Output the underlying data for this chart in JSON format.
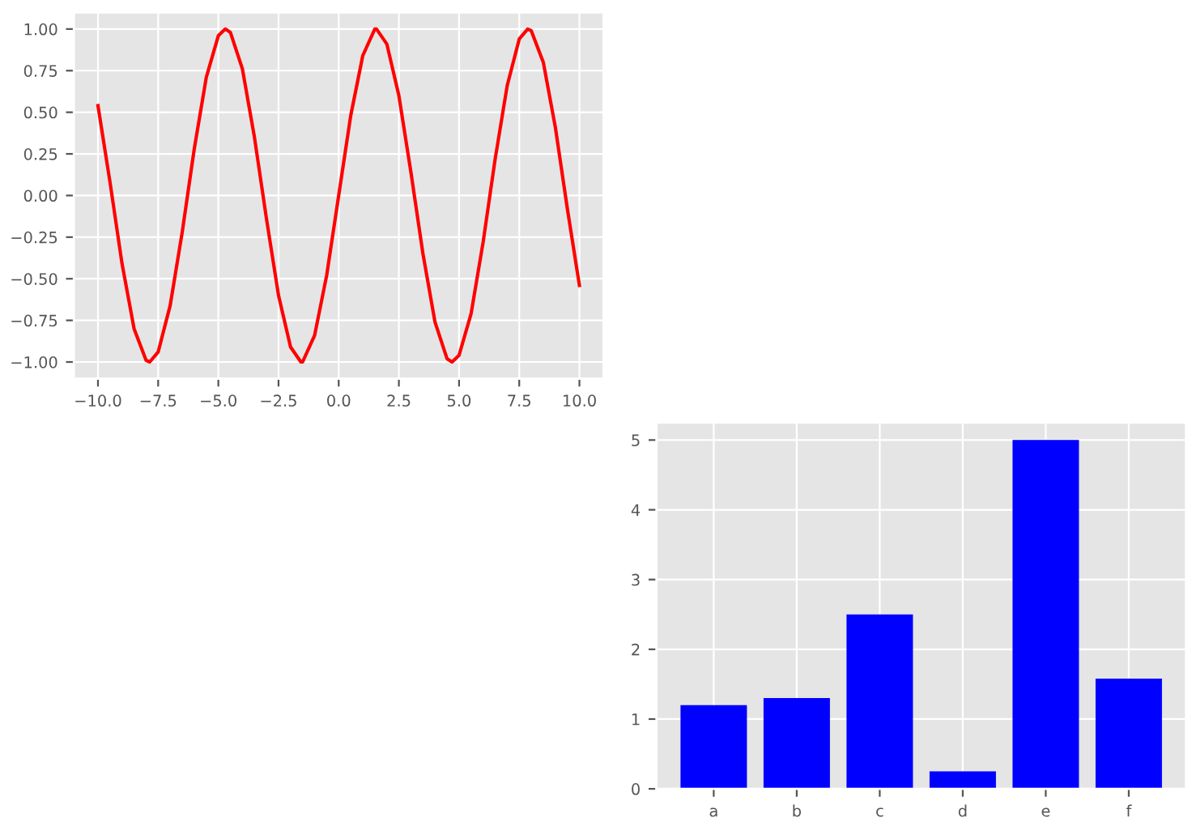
{
  "chart_data": [
    {
      "type": "line",
      "color": "#ff0000",
      "grid": true,
      "x": [
        -10,
        -9.5,
        -9,
        -8.5,
        -8,
        -7.85,
        -7.5,
        -7,
        -6.5,
        -6,
        -5.5,
        -5,
        -4.71,
        -4.5,
        -4,
        -3.5,
        -3,
        -2.5,
        -2,
        -1.57,
        -1.5,
        -1,
        -0.5,
        0,
        0.5,
        1,
        1.5,
        1.57,
        2,
        2.5,
        3,
        3.5,
        4,
        4.5,
        4.71,
        5,
        5.5,
        6,
        6.5,
        7,
        7.5,
        7.85,
        8,
        8.5,
        9,
        9.5,
        10
      ],
      "values": [
        0.54,
        0.08,
        -0.41,
        -0.8,
        -0.99,
        -1.0,
        -0.94,
        -0.66,
        -0.22,
        0.28,
        0.71,
        0.96,
        1.0,
        0.98,
        0.76,
        0.35,
        -0.14,
        -0.6,
        -0.91,
        -1.0,
        -1.0,
        -0.84,
        -0.48,
        0,
        0.48,
        0.84,
        1.0,
        1.0,
        0.91,
        0.6,
        0.14,
        -0.35,
        -0.76,
        -0.98,
        -1.0,
        -0.96,
        -0.71,
        -0.28,
        0.22,
        0.66,
        0.94,
        1.0,
        0.99,
        0.8,
        0.41,
        -0.08,
        -0.54
      ],
      "xlim": [
        -11,
        11
      ],
      "ylim": [
        -1.1,
        1.1
      ],
      "xticks": [
        {
          "value": -10,
          "label": "−10.0"
        },
        {
          "value": -7.5,
          "label": "−7.5"
        },
        {
          "value": -5,
          "label": "−5.0"
        },
        {
          "value": -2.5,
          "label": "−2.5"
        },
        {
          "value": 0,
          "label": "0.0"
        },
        {
          "value": 2.5,
          "label": "2.5"
        },
        {
          "value": 5,
          "label": "5.0"
        },
        {
          "value": 7.5,
          "label": "7.5"
        },
        {
          "value": 10,
          "label": "10.0"
        }
      ],
      "yticks": [
        {
          "value": -1,
          "label": "−1.00"
        },
        {
          "value": -0.75,
          "label": "−0.75"
        },
        {
          "value": -0.5,
          "label": "−0.50"
        },
        {
          "value": -0.25,
          "label": "−0.25"
        },
        {
          "value": 0,
          "label": "0.00"
        },
        {
          "value": 0.25,
          "label": "0.25"
        },
        {
          "value": 0.5,
          "label": "0.50"
        },
        {
          "value": 0.75,
          "label": "0.75"
        },
        {
          "value": 1,
          "label": "1.00"
        }
      ]
    },
    {
      "type": "bar",
      "color": "#0000ff",
      "grid": true,
      "categories": [
        "a",
        "b",
        "c",
        "d",
        "e",
        "f"
      ],
      "values": [
        1.2,
        1.3,
        2.5,
        0.25,
        5.0,
        1.58
      ],
      "ylim": [
        0,
        5.25
      ],
      "yticks": [
        0,
        1,
        2,
        3,
        4,
        5
      ]
    }
  ]
}
